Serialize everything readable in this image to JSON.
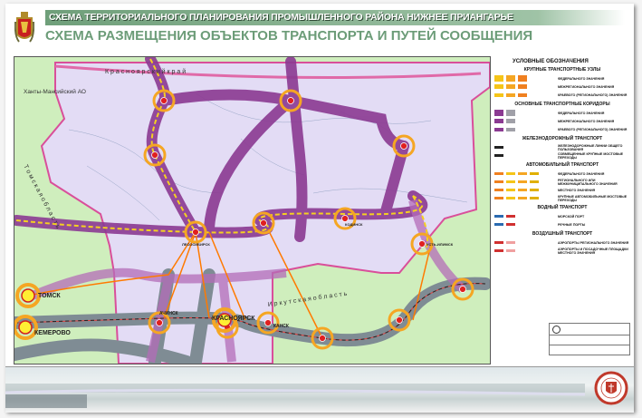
{
  "header": {
    "title": "СХЕМА ТЕРРИТОРИАЛЬНОГО ПЛАНИРОВАНИЯ ПРОМЫШЛЕННОГО РАЙОНА НИЖНЕЕ ПРИАНГАРЬЕ",
    "subtitle": "СХЕМА РАЗМЕЩЕНИЯ ОБЪЕКТОВ ТРАНСПОРТА И ПУТЕЙ СООБЩЕНИЯ"
  },
  "map": {
    "regions": {
      "krasnoyarsk": "К р а с н о я р с к и й   к р а й",
      "khanty": "Ханты-Мансийский АО",
      "tomsk": "Т о м с к а я   о б л а с т ь",
      "irkutsk": "И р к у т с к а я   о б л а с т ь"
    },
    "cities": {
      "tomsk": "ТОМСК",
      "kemerovo": "КЕМЕРОВО",
      "krasnoyarsk": "КРАСНОЯРСК",
      "achinsk": "АЧИНСК",
      "kansk": "КАНСК",
      "lesosibirsk": "ЛЕСОСИБИРСК",
      "kodinsk": "КОДИНСК",
      "ust_ilimsk": "УСТЬ-ИЛИМСК"
    },
    "colors": {
      "land": "#cfeebd",
      "district": "#e3dcf5",
      "corridor_purple": "#8b3a92",
      "corridor_gray": "#7f8c94",
      "node_ring": "#f5a623",
      "city": "#ffee33",
      "road": "#ff7a00",
      "rail": "#222222",
      "boundary": "#d94f9a"
    }
  },
  "legend": {
    "title": "УСЛОВНЫЕ ОБОЗНАЧЕНИЯ",
    "sections": [
      {
        "heading": "КРУПНЫЕ ТРАНСПОРТНЫЕ УЗЛЫ",
        "items": [
          "ФЕДЕРАЛЬНОГО ЗНАЧЕНИЯ",
          "МЕЖРЕГИОНАЛЬНОГО ЗНАЧЕНИЯ",
          "КРАЕВОГО (РЕГИОНАЛЬНОГО) ЗНАЧЕНИЯ"
        ]
      },
      {
        "heading": "ОСНОВНЫЕ ТРАНСПОРТНЫЕ КОРИДОРЫ",
        "items": [
          "ФЕДЕРАЛЬНОГО ЗНАЧЕНИЯ",
          "МЕЖРЕГИОНАЛЬНОГО ЗНАЧЕНИЯ",
          "КРАЕВОГО (РЕГИОНАЛЬНОГО) ЗНАЧЕНИЯ"
        ]
      },
      {
        "heading": "ЖЕЛЕЗНОДОРОЖНЫЙ ТРАНСПОРТ",
        "items": [
          "ЖЕЛЕЗНОДОРОЖНЫЕ ЛИНИИ ОБЩЕГО ПОЛЬЗОВАНИЯ",
          "СОВМЕЩЕННЫЕ КРУПНЫЕ МОСТОВЫЕ ПЕРЕХОДЫ"
        ]
      },
      {
        "heading": "АВТОМОБИЛЬНЫЙ ТРАНСПОРТ",
        "items": [
          "ФЕДЕРАЛЬНОГО ЗНАЧЕНИЯ",
          "РЕГИОНАЛЬНОГО ИЛИ МЕЖМУНИЦИПАЛЬНОГО ЗНАЧЕНИЯ",
          "МЕСТНОГО ЗНАЧЕНИЯ",
          "КРУПНЫЕ АВТОМОБИЛЬНЫЕ МОСТОВЫЕ ПЕРЕХОДЫ"
        ]
      },
      {
        "heading": "ВОДНЫЙ ТРАНСПОРТ",
        "items": [
          "МОРСКОЙ ПОРТ",
          "РЕЧНЫЕ ПОРТЫ"
        ]
      },
      {
        "heading": "ВОЗДУШНЫЙ ТРАНСПОРТ",
        "items": [
          "АЭРОПОРТЫ РЕГИОНАЛЬНОГО ЗНАЧЕНИЯ",
          "АЭРОПОРТЫ И ПОСАДОЧНЫЕ ПЛОЩАДКИ МЕСТНОГО ЗНАЧЕНИЯ"
        ]
      }
    ]
  }
}
